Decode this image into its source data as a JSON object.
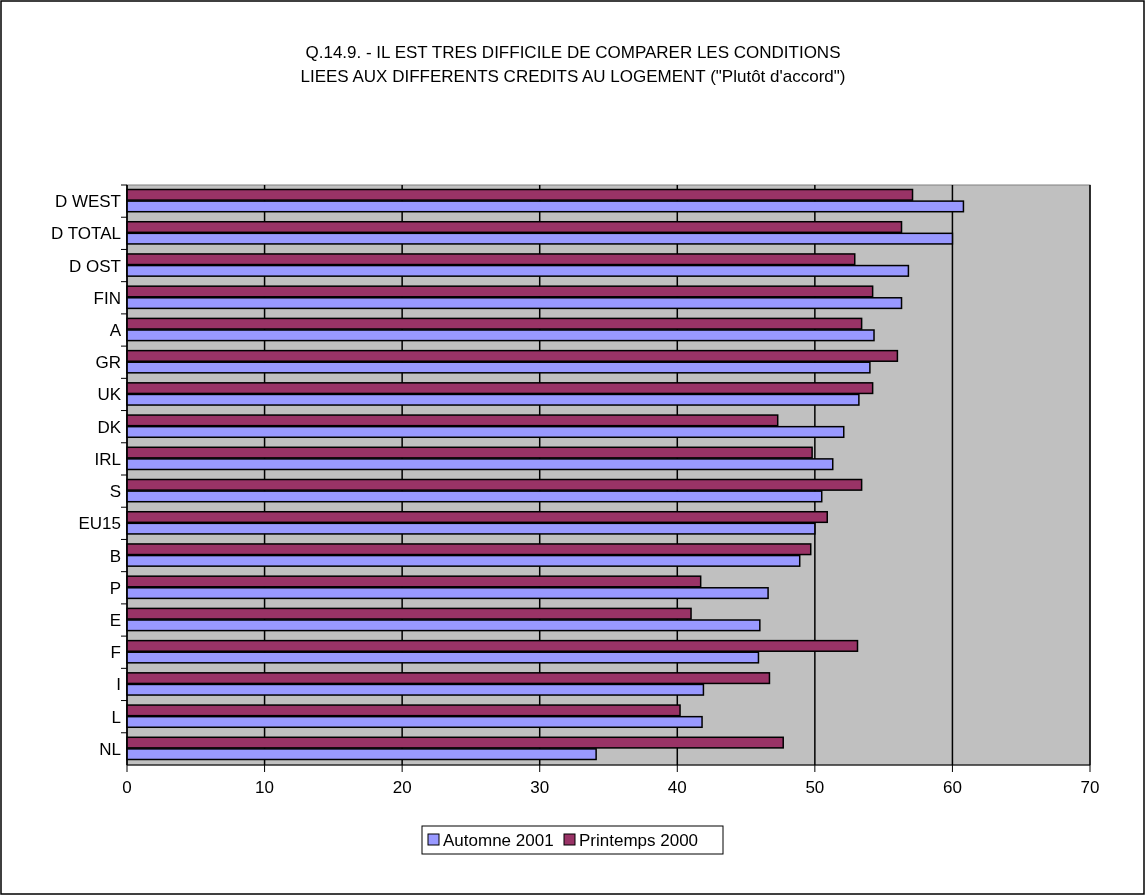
{
  "chart_data": {
    "type": "bar",
    "orientation": "horizontal",
    "title": "Q.14.9. - IL EST TRES DIFFICILE DE COMPARER LES CONDITIONS\nLIEES AUX DIFFERENTS CREDITS AU LOGEMENT (\"Plutôt d'accord\")",
    "categories": [
      "D WEST",
      "D TOTAL",
      "D OST",
      "FIN",
      "A",
      "GR",
      "UK",
      "DK",
      "IRL",
      "S",
      "EU15",
      "B",
      "P",
      "E",
      "F",
      "I",
      "L",
      "NL"
    ],
    "series": [
      {
        "name": "Automne 2001",
        "color": "#9999ff",
        "values": [
          60.8,
          60.0,
          56.8,
          56.3,
          54.3,
          54.0,
          53.2,
          52.1,
          51.3,
          50.5,
          50.0,
          48.9,
          46.6,
          46.0,
          45.9,
          41.9,
          41.8,
          34.1
        ]
      },
      {
        "name": "Printemps 2000",
        "color": "#993366",
        "values": [
          57.1,
          56.3,
          52.9,
          54.2,
          53.4,
          56.0,
          54.2,
          47.3,
          49.8,
          53.4,
          50.9,
          49.7,
          41.7,
          41.0,
          53.1,
          46.7,
          40.2,
          47.7
        ]
      }
    ],
    "xlim": [
      0,
      70
    ],
    "xticks": [
      0,
      10,
      20,
      30,
      40,
      50,
      60,
      70
    ],
    "grid": "x",
    "legend": "bottom"
  }
}
